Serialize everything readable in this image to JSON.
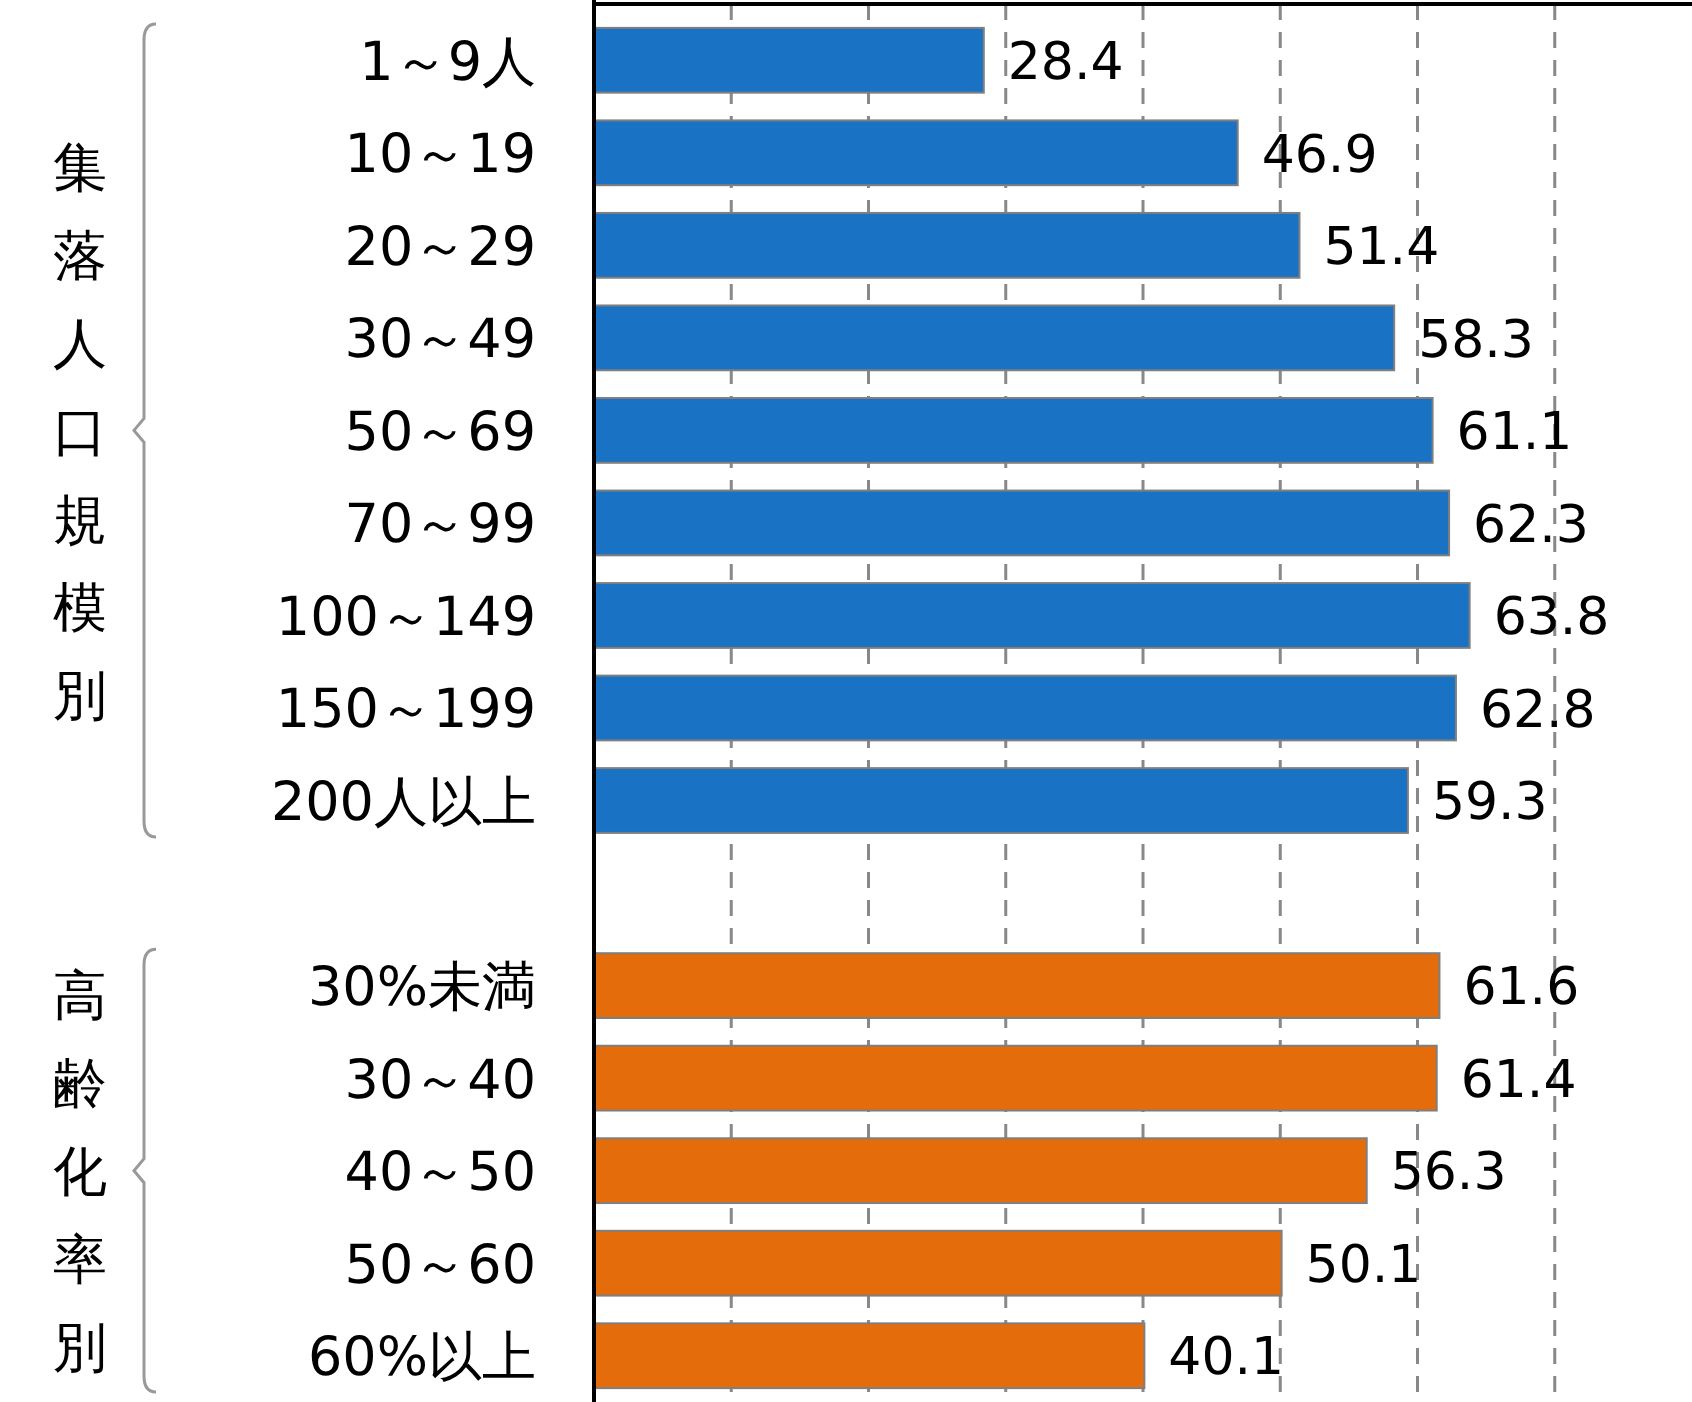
{
  "chart_data": {
    "type": "bar",
    "orientation": "horizontal",
    "categories": [
      "1～9人",
      "10～19",
      "20～29",
      "30～49",
      "50～69",
      "70～99",
      "100～149",
      "150～199",
      "200人以上",
      null,
      "30%未満",
      "30～40",
      "40～50",
      "50～60",
      "60%以上"
    ],
    "values": [
      28.4,
      46.9,
      51.4,
      58.3,
      61.1,
      62.3,
      63.8,
      62.8,
      59.3,
      null,
      61.6,
      61.4,
      56.3,
      50.1,
      40.1
    ],
    "colors": [
      "#1a72c4",
      "#1a72c4",
      "#1a72c4",
      "#1a72c4",
      "#1a72c4",
      "#1a72c4",
      "#1a72c4",
      "#1a72c4",
      "#1a72c4",
      null,
      "#e46c0a",
      "#e46c0a",
      "#e46c0a",
      "#e46c0a",
      "#e46c0a"
    ],
    "xlim": [
      0,
      80
    ],
    "xticks": [
      {
        "value": 10,
        "label": null
      },
      {
        "value": 20,
        "label": null
      },
      {
        "value": 30,
        "label": null
      },
      {
        "value": 40,
        "label": null
      },
      {
        "value": 50,
        "label": null
      },
      {
        "value": 60,
        "label": null
      },
      {
        "value": 70,
        "label": null
      }
    ],
    "tick_labels": "y",
    "grid": "x",
    "line_style": "dashed",
    "data_labels": true,
    "annotations": [
      "集落人口規模別",
      "高齢化率別"
    ]
  }
}
